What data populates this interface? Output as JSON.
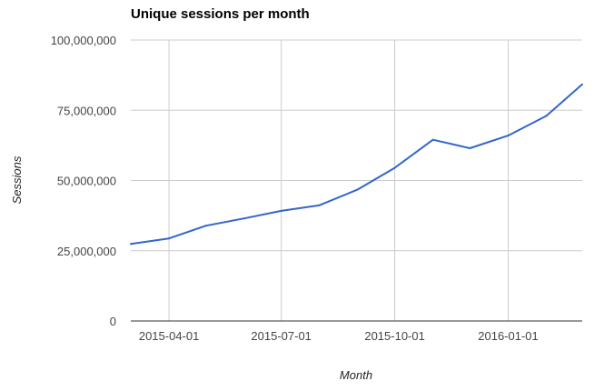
{
  "chart_data": {
    "type": "line",
    "title": "Unique sessions per month",
    "xlabel": "Month",
    "ylabel": "Sessions",
    "x": [
      "2015-03-01",
      "2015-04-01",
      "2015-05-01",
      "2015-06-01",
      "2015-07-01",
      "2015-08-01",
      "2015-09-01",
      "2015-10-01",
      "2015-11-01",
      "2015-12-01",
      "2016-01-01",
      "2016-02-01",
      "2016-03-01"
    ],
    "series": [
      {
        "values": [
          27400000,
          29400000,
          33900000,
          36500000,
          39200000,
          41200000,
          46800000,
          54500000,
          64500000,
          61500000,
          66000000,
          73000000,
          84200000
        ],
        "color": "#3366cc"
      }
    ],
    "x_ticks": [
      "2015-04-01",
      "2015-07-01",
      "2015-10-01",
      "2016-01-01"
    ],
    "y_ticks": [
      "0",
      "25,000,000",
      "50,000,000",
      "75,000,000",
      "100,000,000"
    ],
    "ylim": [
      0,
      100000000
    ],
    "grid": true,
    "legend": "none"
  }
}
